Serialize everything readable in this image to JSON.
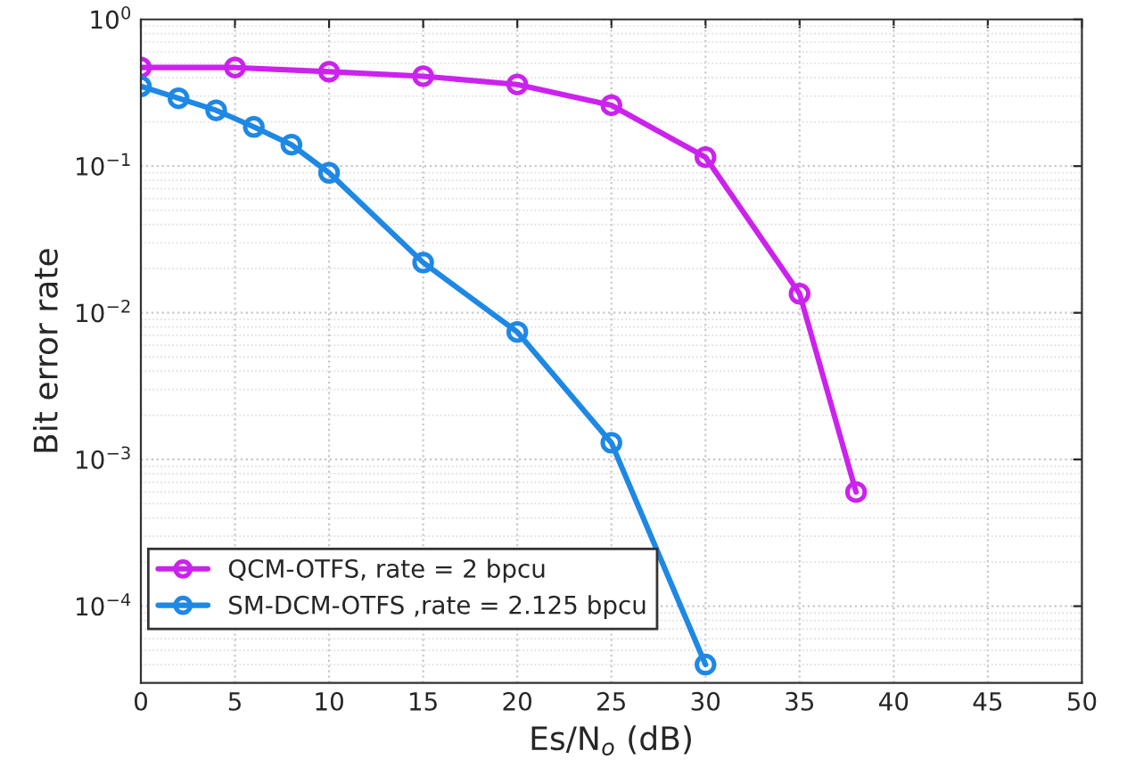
{
  "chart_data": {
    "type": "line",
    "xlabel": "Es/N$_{o}$ (dB)",
    "ylabel": "Bit error rate",
    "log": "y",
    "grid": true,
    "legend": "bottom left",
    "marker": "circle",
    "line_style": "solid",
    "xlim": [
      0,
      50
    ],
    "xticks": [
      0,
      5,
      10,
      15,
      20,
      25,
      30,
      35,
      40,
      45,
      50
    ],
    "ylim": [
      3e-05,
      1
    ],
    "yticks": [
      {
        "value": 0.0001,
        "label": "10$^{−4}$"
      },
      {
        "value": 0.001,
        "label": "10$^{−3}$"
      },
      {
        "value": 0.01,
        "label": "10$^{−2}$"
      },
      {
        "value": 0.1,
        "label": "10$^{−1}$"
      },
      {
        "value": 1,
        "label": "10$^{0}$"
      }
    ],
    "series": [
      {
        "name": "QCM-OTFS, rate = 2 bpcu",
        "color": "#cc22ee",
        "x": [
          0,
          5,
          10,
          15,
          20,
          25,
          30,
          35,
          38
        ],
        "values": [
          0.47,
          0.47,
          0.44,
          0.41,
          0.36,
          0.26,
          0.115,
          0.0135,
          0.0006
        ]
      },
      {
        "name": "SM-DCM-OTFS ,rate = 2.125 bpcu",
        "color": "#1e88e5",
        "x": [
          0,
          2,
          4,
          6,
          8,
          10,
          15,
          20,
          25,
          30
        ],
        "values": [
          0.35,
          0.29,
          0.24,
          0.185,
          0.14,
          0.09,
          0.022,
          0.0074,
          0.0013,
          4e-05
        ]
      }
    ]
  }
}
